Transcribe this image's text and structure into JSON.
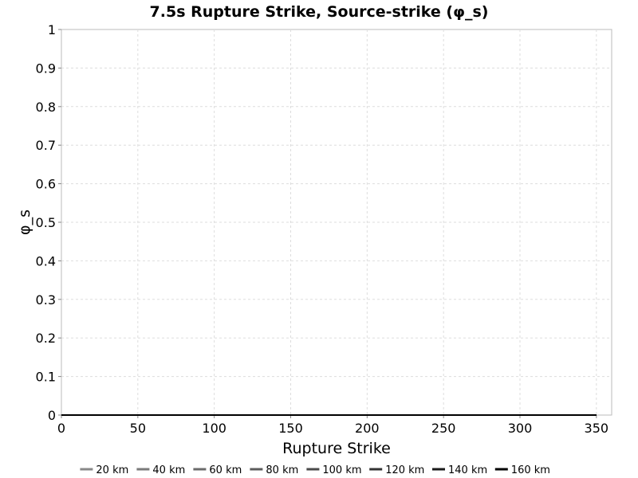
{
  "chart_data": {
    "type": "line",
    "title": "7.5s Rupture Strike, Source-strike (φ_s)",
    "xlabel": "Rupture Strike",
    "ylabel": "φ_s",
    "xlim": [
      0,
      360
    ],
    "ylim": [
      0,
      1
    ],
    "xticks": [
      0,
      50,
      100,
      150,
      200,
      250,
      300,
      350
    ],
    "yticks": [
      0,
      0.1,
      0.2,
      0.3,
      0.4,
      0.5,
      0.6,
      0.7,
      0.8,
      0.9,
      1
    ],
    "grid": true,
    "legend_position": "bottom",
    "x": [
      0,
      350
    ],
    "series": [
      {
        "name": "20 km",
        "color": "#888888",
        "values": [
          0,
          0
        ]
      },
      {
        "name": "40 km",
        "color": "#7a7a7a",
        "values": [
          0,
          0
        ]
      },
      {
        "name": "60 km",
        "color": "#6b6b6b",
        "values": [
          0,
          0
        ]
      },
      {
        "name": "80 km",
        "color": "#5c5c5c",
        "values": [
          0,
          0
        ]
      },
      {
        "name": "100 km",
        "color": "#4a4a4a",
        "values": [
          0,
          0
        ]
      },
      {
        "name": "120 km",
        "color": "#333333",
        "values": [
          0,
          0
        ]
      },
      {
        "name": "140 km",
        "color": "#1a1a1a",
        "values": [
          0,
          0
        ]
      },
      {
        "name": "160 km",
        "color": "#000000",
        "values": [
          0,
          0
        ]
      }
    ]
  }
}
